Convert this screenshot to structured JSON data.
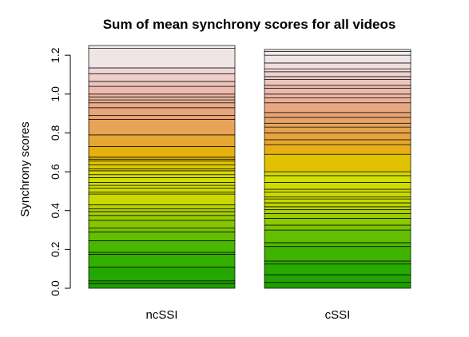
{
  "chart_data": {
    "type": "bar",
    "stacked": true,
    "title": "Sum of mean synchrony scores for all videos",
    "xlabel": "",
    "ylabel": "Synchrony scores",
    "ylim": [
      0,
      1.25
    ],
    "yticks": [
      "0.0",
      "0.2",
      "0.4",
      "0.6",
      "0.8",
      "1.0",
      "1.2"
    ],
    "ytick_values": [
      0,
      0.2,
      0.4,
      0.6,
      0.8,
      1.0,
      1.2
    ],
    "grid": false,
    "legend": "none",
    "categories": [
      "ncSSI",
      "cSSI"
    ],
    "color_scale": [
      "#1e9c00",
      "#2aac00",
      "#4db800",
      "#8cc800",
      "#c8d800",
      "#d2e000",
      "#e6b400",
      "#e6a248",
      "#e8a47a",
      "#ecbcb0",
      "#f0dcdc",
      "#f0f0f0"
    ],
    "totals": [
      1.25,
      1.23
    ],
    "series_boundaries": [
      {
        "name": "ncSSI",
        "cumulative": [
          0.025,
          0.038,
          0.11,
          0.175,
          0.185,
          0.245,
          0.29,
          0.31,
          0.35,
          0.375,
          0.395,
          0.41,
          0.43,
          0.485,
          0.495,
          0.515,
          0.53,
          0.545,
          0.57,
          0.585,
          0.605,
          0.615,
          0.635,
          0.655,
          0.665,
          0.675,
          0.73,
          0.79,
          0.87,
          0.89,
          0.93,
          0.955,
          0.97,
          0.985,
          1.0,
          1.04,
          1.065,
          1.105,
          1.135,
          1.235,
          1.25
        ]
      },
      {
        "name": "cSSI",
        "cumulative": [
          0.03,
          0.07,
          0.125,
          0.14,
          0.215,
          0.235,
          0.3,
          0.325,
          0.36,
          0.385,
          0.405,
          0.42,
          0.44,
          0.46,
          0.47,
          0.495,
          0.51,
          0.545,
          0.58,
          0.6,
          0.69,
          0.74,
          0.765,
          0.8,
          0.83,
          0.85,
          0.88,
          0.905,
          0.955,
          0.98,
          1.0,
          1.03,
          1.045,
          1.075,
          1.09,
          1.115,
          1.13,
          1.16,
          1.2,
          1.22,
          1.23
        ]
      }
    ]
  }
}
